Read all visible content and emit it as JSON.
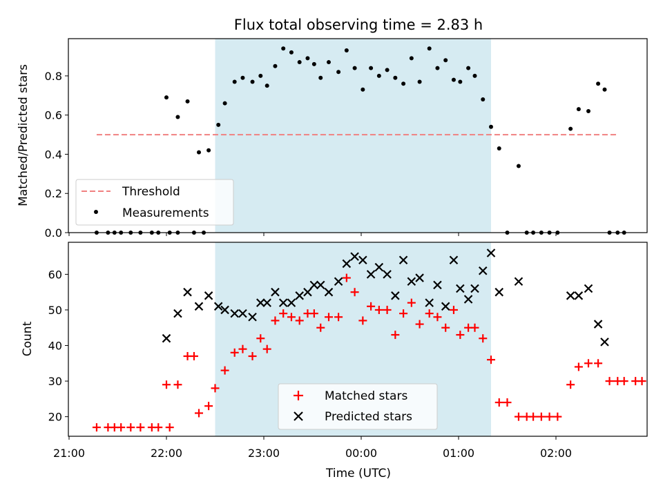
{
  "chart_data": {
    "title": "Flux total observing time = 2.83 h",
    "xlabel": "Time (UTC)",
    "x_ticks": [
      "21:00",
      "22:00",
      "23:00",
      "00:00",
      "01:00",
      "02:00"
    ],
    "shaded_interval": {
      "start": "22:30",
      "end": "01:20",
      "color": "#add8e6"
    },
    "panels": [
      {
        "type": "scatter",
        "ylabel": "Matched/Predicted stars",
        "ylim": [
          0,
          0.99
        ],
        "yticks": [
          "0.0",
          "0.2",
          "0.4",
          "0.6",
          "0.8"
        ],
        "legend": {
          "placement": "lower-left",
          "entries": [
            "Threshold",
            "Measurements"
          ]
        },
        "series": [
          {
            "name": "Threshold",
            "kind": "hline",
            "y": 0.5,
            "x_start": "21:17",
            "x_end": "02:38",
            "color": "#f08080",
            "style": "dashed"
          },
          {
            "name": "Measurements",
            "kind": "points",
            "color": "#000000",
            "points": [
              [
                "21:17",
                0
              ],
              [
                "21:24",
                0
              ],
              [
                "21:28",
                0
              ],
              [
                "21:32",
                0
              ],
              [
                "21:38",
                0
              ],
              [
                "21:44",
                0
              ],
              [
                "21:51",
                0
              ],
              [
                "21:55",
                0
              ],
              [
                "22:02",
                0
              ],
              [
                "22:07",
                0
              ],
              [
                "22:17",
                0
              ],
              [
                "22:23",
                0
              ],
              [
                "22:00",
                0.69
              ],
              [
                "22:07",
                0.59
              ],
              [
                "22:13",
                0.67
              ],
              [
                "22:20",
                0.41
              ],
              [
                "22:26",
                0.42
              ],
              [
                "22:32",
                0.55
              ],
              [
                "22:36",
                0.66
              ],
              [
                "22:42",
                0.77
              ],
              [
                "22:47",
                0.79
              ],
              [
                "22:53",
                0.77
              ],
              [
                "22:58",
                0.8
              ],
              [
                "23:02",
                0.75
              ],
              [
                "23:07",
                0.85
              ],
              [
                "23:12",
                0.94
              ],
              [
                "23:17",
                0.92
              ],
              [
                "23:22",
                0.87
              ],
              [
                "23:27",
                0.89
              ],
              [
                "23:31",
                0.86
              ],
              [
                "23:35",
                0.79
              ],
              [
                "23:40",
                0.87
              ],
              [
                "23:46",
                0.82
              ],
              [
                "23:51",
                0.93
              ],
              [
                "23:56",
                0.84
              ],
              [
                "00:01",
                0.73
              ],
              [
                "00:06",
                0.84
              ],
              [
                "00:11",
                0.8
              ],
              [
                "00:16",
                0.83
              ],
              [
                "00:21",
                0.79
              ],
              [
                "00:26",
                0.76
              ],
              [
                "00:31",
                0.89
              ],
              [
                "00:36",
                0.77
              ],
              [
                "00:42",
                0.94
              ],
              [
                "00:47",
                0.84
              ],
              [
                "00:52",
                0.88
              ],
              [
                "00:57",
                0.78
              ],
              [
                "01:01",
                0.77
              ],
              [
                "01:06",
                0.84
              ],
              [
                "01:10",
                0.8
              ],
              [
                "01:15",
                0.68
              ],
              [
                "01:20",
                0.54
              ],
              [
                "01:25",
                0.43
              ],
              [
                "01:30",
                0
              ],
              [
                "01:37",
                0.34
              ],
              [
                "01:42",
                0
              ],
              [
                "01:46",
                0
              ],
              [
                "01:51",
                0
              ],
              [
                "01:56",
                0
              ],
              [
                "02:01",
                0
              ],
              [
                "02:09",
                0.53
              ],
              [
                "02:14",
                0.63
              ],
              [
                "02:20",
                0.62
              ],
              [
                "02:26",
                0.76
              ],
              [
                "02:30",
                0.73
              ],
              [
                "02:33",
                0
              ],
              [
                "02:38",
                0
              ],
              [
                "02:42",
                0
              ]
            ]
          }
        ]
      },
      {
        "type": "scatter",
        "ylabel": "Count",
        "ylim": [
          14.5,
          69
        ],
        "yticks": [
          "20",
          "30",
          "40",
          "50",
          "60"
        ],
        "legend": {
          "placement": "lower-center",
          "entries": [
            "Matched stars",
            "Predicted stars"
          ]
        },
        "series": [
          {
            "name": "Matched stars",
            "marker": "+",
            "color": "#ff0000",
            "points": [
              [
                "21:17",
                17
              ],
              [
                "21:24",
                17
              ],
              [
                "21:28",
                17
              ],
              [
                "21:32",
                17
              ],
              [
                "21:38",
                17
              ],
              [
                "21:44",
                17
              ],
              [
                "21:51",
                17
              ],
              [
                "21:55",
                17
              ],
              [
                "22:02",
                17
              ],
              [
                "22:00",
                29
              ],
              [
                "22:07",
                29
              ],
              [
                "22:13",
                37
              ],
              [
                "22:17",
                37
              ],
              [
                "22:20",
                21
              ],
              [
                "22:26",
                23
              ],
              [
                "22:30",
                28
              ],
              [
                "22:36",
                33
              ],
              [
                "22:42",
                38
              ],
              [
                "22:47",
                39
              ],
              [
                "22:53",
                37
              ],
              [
                "22:58",
                42
              ],
              [
                "23:02",
                39
              ],
              [
                "23:07",
                47
              ],
              [
                "23:12",
                49
              ],
              [
                "23:17",
                48
              ],
              [
                "23:22",
                47
              ],
              [
                "23:27",
                49
              ],
              [
                "23:31",
                49
              ],
              [
                "23:35",
                45
              ],
              [
                "23:40",
                48
              ],
              [
                "23:46",
                48
              ],
              [
                "23:51",
                59
              ],
              [
                "23:56",
                55
              ],
              [
                "00:01",
                47
              ],
              [
                "00:06",
                51
              ],
              [
                "00:11",
                50
              ],
              [
                "00:16",
                50
              ],
              [
                "00:21",
                43
              ],
              [
                "00:26",
                49
              ],
              [
                "00:31",
                52
              ],
              [
                "00:36",
                46
              ],
              [
                "00:42",
                49
              ],
              [
                "00:47",
                48
              ],
              [
                "00:52",
                45
              ],
              [
                "00:57",
                50
              ],
              [
                "01:01",
                43
              ],
              [
                "01:06",
                45
              ],
              [
                "01:10",
                45
              ],
              [
                "01:15",
                42
              ],
              [
                "01:20",
                36
              ],
              [
                "01:25",
                24
              ],
              [
                "01:30",
                24
              ],
              [
                "01:37",
                20
              ],
              [
                "01:42",
                20
              ],
              [
                "01:46",
                20
              ],
              [
                "01:51",
                20
              ],
              [
                "01:56",
                20
              ],
              [
                "02:01",
                20
              ],
              [
                "02:09",
                29
              ],
              [
                "02:14",
                34
              ],
              [
                "02:20",
                35
              ],
              [
                "02:26",
                35
              ],
              [
                "02:33",
                30
              ],
              [
                "02:38",
                30
              ],
              [
                "02:42",
                30
              ],
              [
                "02:49",
                30
              ],
              [
                "02:53",
                30
              ]
            ]
          },
          {
            "name": "Predicted stars",
            "marker": "x",
            "color": "#000000",
            "points": [
              [
                "22:00",
                42
              ],
              [
                "22:07",
                49
              ],
              [
                "22:13",
                55
              ],
              [
                "22:20",
                51
              ],
              [
                "22:26",
                54
              ],
              [
                "22:32",
                51
              ],
              [
                "22:36",
                50
              ],
              [
                "22:42",
                49
              ],
              [
                "22:47",
                49
              ],
              [
                "22:53",
                48
              ],
              [
                "22:58",
                52
              ],
              [
                "23:02",
                52
              ],
              [
                "23:07",
                55
              ],
              [
                "23:12",
                52
              ],
              [
                "23:17",
                52
              ],
              [
                "23:22",
                54
              ],
              [
                "23:27",
                55
              ],
              [
                "23:31",
                57
              ],
              [
                "23:35",
                57
              ],
              [
                "23:40",
                55
              ],
              [
                "23:46",
                58
              ],
              [
                "23:51",
                63
              ],
              [
                "23:56",
                65
              ],
              [
                "00:01",
                64
              ],
              [
                "00:06",
                60
              ],
              [
                "00:11",
                62
              ],
              [
                "00:16",
                60
              ],
              [
                "00:21",
                54
              ],
              [
                "00:26",
                64
              ],
              [
                "00:31",
                58
              ],
              [
                "00:36",
                59
              ],
              [
                "00:42",
                52
              ],
              [
                "00:47",
                57
              ],
              [
                "00:52",
                51
              ],
              [
                "00:57",
                64
              ],
              [
                "01:01",
                56
              ],
              [
                "01:06",
                53
              ],
              [
                "01:10",
                56
              ],
              [
                "01:15",
                61
              ],
              [
                "01:20",
                66
              ],
              [
                "01:25",
                55
              ],
              [
                "01:37",
                58
              ],
              [
                "02:09",
                54
              ],
              [
                "02:14",
                54
              ],
              [
                "02:20",
                56
              ],
              [
                "02:26",
                46
              ],
              [
                "02:30",
                41
              ]
            ]
          }
        ]
      }
    ]
  }
}
